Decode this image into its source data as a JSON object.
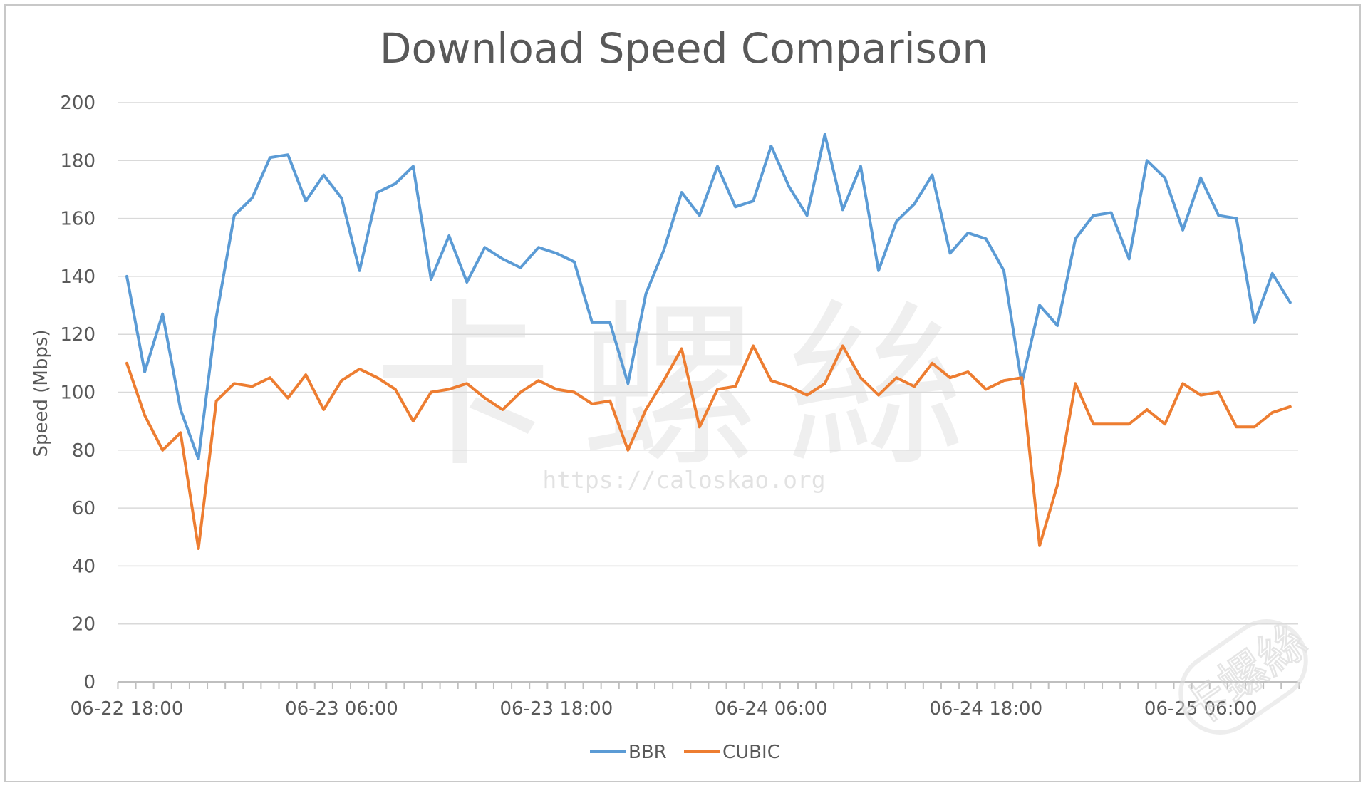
{
  "chart_data": {
    "type": "line",
    "title": "Download Speed Comparison",
    "xlabel": "",
    "ylabel": "Speed (Mbps)",
    "ylim": [
      0,
      200
    ],
    "yticks": [
      "0",
      "20",
      "40",
      "60",
      "80",
      "100",
      "120",
      "140",
      "160",
      "180",
      "200"
    ],
    "xtick_labels": [
      {
        "label": "06-22 18:00",
        "index": 0
      },
      {
        "label": "06-23 06:00",
        "index": 12
      },
      {
        "label": "06-23 18:00",
        "index": 24
      },
      {
        "label": "06-24 06:00",
        "index": 36
      },
      {
        "label": "06-24 18:00",
        "index": 48
      },
      {
        "label": "06-25 06:00",
        "index": 60
      }
    ],
    "grid": true,
    "legend_position": "bottom",
    "series": [
      {
        "name": "BBR",
        "color": "#5b9bd5",
        "values": [
          140,
          107,
          127,
          94,
          77,
          126,
          161,
          167,
          181,
          182,
          166,
          175,
          167,
          142,
          169,
          172,
          178,
          139,
          154,
          138,
          150,
          146,
          143,
          150,
          148,
          145,
          124,
          124,
          103,
          134,
          149,
          169,
          161,
          178,
          164,
          166,
          185,
          171,
          161,
          189,
          163,
          178,
          142,
          159,
          165,
          175,
          148,
          155,
          153,
          142,
          103,
          130,
          123,
          153,
          161,
          162,
          146,
          180,
          174,
          156,
          174,
          161,
          160,
          124,
          141,
          131
        ]
      },
      {
        "name": "CUBIC",
        "color": "#ed7d31",
        "values": [
          110,
          92,
          80,
          86,
          46,
          97,
          103,
          102,
          105,
          98,
          106,
          94,
          104,
          108,
          105,
          101,
          90,
          100,
          101,
          103,
          98,
          94,
          100,
          104,
          101,
          100,
          96,
          97,
          80,
          94,
          104,
          115,
          88,
          101,
          102,
          116,
          104,
          102,
          99,
          103,
          116,
          105,
          99,
          105,
          102,
          110,
          105,
          107,
          101,
          104,
          105,
          47,
          68,
          103,
          89,
          89,
          89,
          94,
          89,
          103,
          99,
          100,
          88,
          88,
          93,
          95
        ]
      }
    ]
  },
  "watermark": {
    "chars": "卡螺絲",
    "url": "https://caloskao.org",
    "logo_text": "卡螺絲"
  }
}
